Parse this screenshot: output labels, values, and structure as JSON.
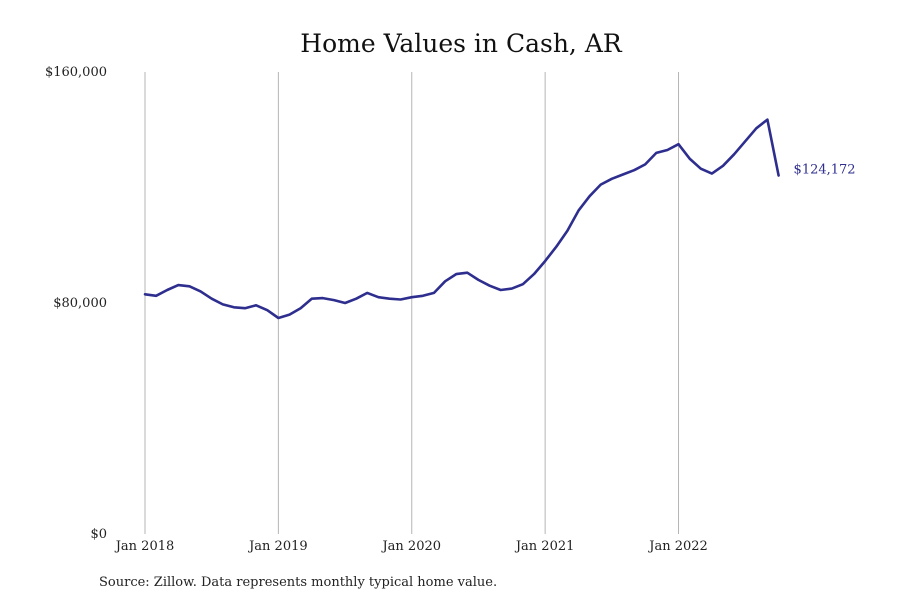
{
  "chart_data": {
    "type": "line",
    "title": "Home Values in Cash, AR",
    "xlabel": "",
    "ylabel": "",
    "x_start": "2018-01",
    "x_end": "2022-10",
    "ylim": [
      0,
      160000
    ],
    "y_ticks": [
      0,
      80000,
      160000
    ],
    "y_tick_labels": [
      "$0",
      "$80,000",
      "$160,000"
    ],
    "x_tick_positions": [
      "2018-01",
      "2019-01",
      "2020-01",
      "2021-01",
      "2022-01"
    ],
    "x_tick_labels": [
      "Jan 2018",
      "Jan 2019",
      "Jan 2020",
      "Jan 2021",
      "Jan 2022"
    ],
    "grid": "vertical",
    "line_color": "#2e2e8f",
    "series": [
      {
        "values": [
          83000,
          82500,
          84500,
          86200,
          85800,
          84000,
          81500,
          79500,
          78500,
          78200,
          79200,
          77500,
          74800,
          76000,
          78200,
          81500,
          81700,
          81000,
          80000,
          81500,
          83500,
          82000,
          81500,
          81200,
          82000,
          82500,
          83500,
          87500,
          90000,
          90500,
          88000,
          86000,
          84500,
          85000,
          86500,
          90000,
          94500,
          99500,
          105000,
          112000,
          117000,
          121000,
          123000,
          124500,
          126000,
          128000,
          132000,
          133000,
          135000,
          130000,
          126500,
          124800,
          127500,
          131500,
          136000,
          140500,
          143500,
          124172
        ]
      }
    ],
    "end_label": "$124,172",
    "source_note": "Source: Zillow. Data represents monthly typical home value."
  }
}
